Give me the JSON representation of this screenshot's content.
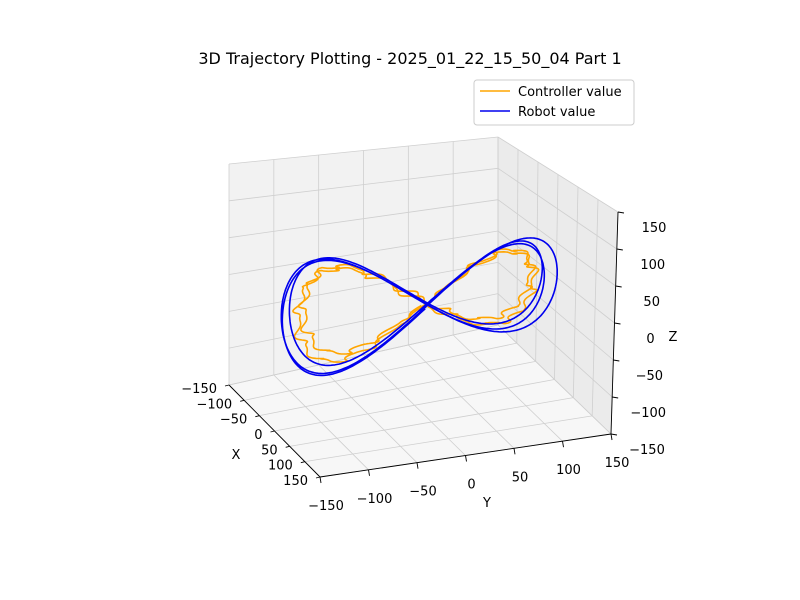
{
  "chart_data": {
    "type": "line",
    "projection": "3d",
    "title": "3D Trajectory Plotting - 2025_01_22_15_50_04 Part 1",
    "xlabel": "X",
    "ylabel": "Y",
    "zlabel": "Z",
    "xlim": [
      -150,
      150
    ],
    "ylim": [
      -150,
      150
    ],
    "zlim": [
      -150,
      150
    ],
    "x_ticks": [
      "−150",
      "−100",
      "−50",
      "0",
      "50",
      "100",
      "150"
    ],
    "y_ticks": [
      "−150",
      "−100",
      "−50",
      "0",
      "50",
      "100",
      "150"
    ],
    "z_ticks": [
      "−150",
      "−100",
      "−50",
      "0",
      "50",
      "100",
      "150"
    ],
    "grid": true,
    "legend_position": "top-right",
    "series": [
      {
        "name": "Controller value",
        "color": "#ffa500",
        "shape": "figure-eight",
        "amplitude_y": 120,
        "amplitude_z": 55,
        "amplitude_x": 20,
        "loops": 2,
        "jitter": true
      },
      {
        "name": "Robot value",
        "color": "#0000ee",
        "shape": "figure-eight",
        "amplitude_y": 140,
        "amplitude_z": 70,
        "amplitude_x": 25,
        "loops": 3,
        "jitter": false
      }
    ]
  }
}
